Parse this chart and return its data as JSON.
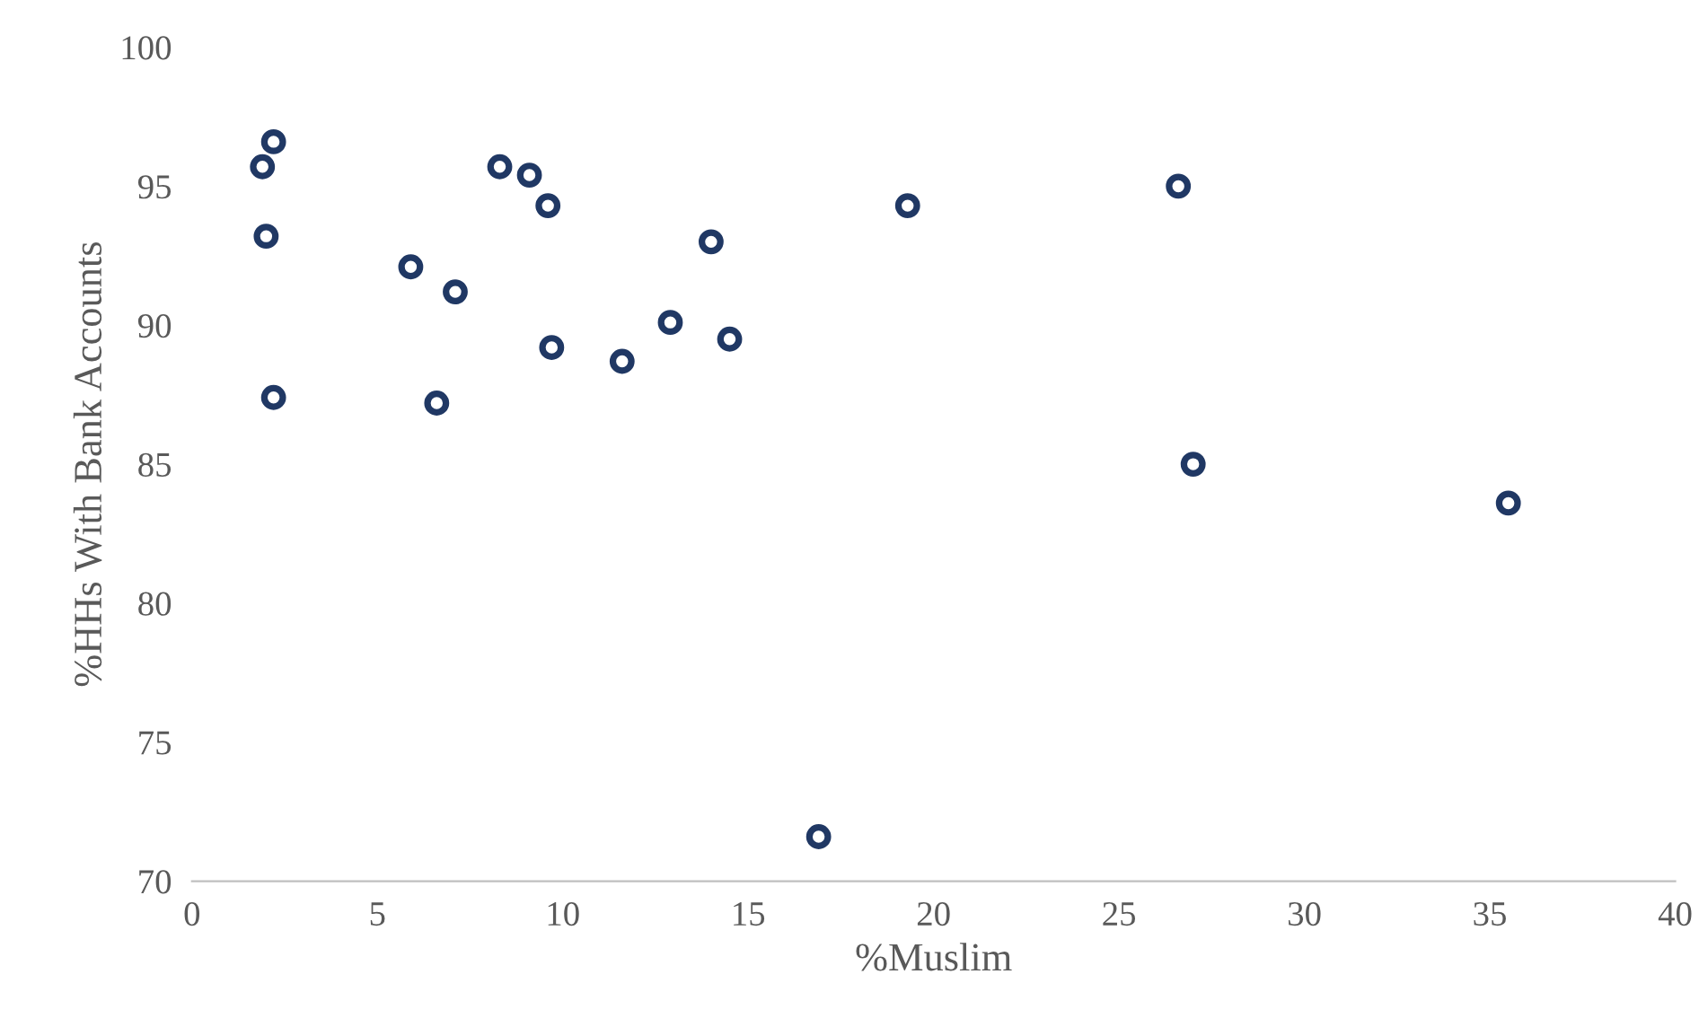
{
  "chart_data": {
    "type": "scatter",
    "xlabel": "%Muslim",
    "ylabel": "%HHs With Bank Accounts",
    "xlim": [
      0,
      40
    ],
    "xticks": [
      0,
      5,
      10,
      15,
      20,
      25,
      30,
      35,
      40
    ],
    "ylim": [
      70,
      100
    ],
    "yticks": [
      70,
      75,
      80,
      85,
      90,
      95,
      100
    ],
    "grid": false,
    "marker": "circle",
    "series": [
      {
        "color": "#203864",
        "x": [
          1.9,
          2.2,
          2.0,
          2.2,
          5.9,
          7.1,
          6.6,
          8.3,
          9.1,
          9.6,
          9.7,
          11.6,
          12.9,
          14.0,
          14.5,
          16.9,
          19.3,
          26.6,
          27.0,
          35.5
        ],
        "values": [
          95.7,
          96.6,
          93.2,
          87.4,
          92.1,
          91.2,
          87.2,
          95.7,
          95.4,
          94.3,
          89.2,
          88.7,
          90.1,
          93.0,
          89.5,
          71.6,
          94.3,
          95.0,
          85.0,
          83.6
        ]
      }
    ]
  }
}
